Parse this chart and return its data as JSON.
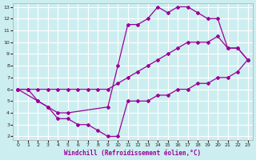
{
  "xlabel": "Windchill (Refroidissement éolien,°C)",
  "bg_color": "#cdeef0",
  "grid_color": "#ffffff",
  "line_color": "#990099",
  "xlim": [
    0,
    23
  ],
  "ylim": [
    2,
    13
  ],
  "xticks": [
    0,
    1,
    2,
    3,
    4,
    5,
    6,
    7,
    8,
    9,
    10,
    11,
    12,
    13,
    14,
    15,
    16,
    17,
    18,
    19,
    20,
    21,
    22,
    23
  ],
  "yticks": [
    2,
    3,
    4,
    5,
    6,
    7,
    8,
    9,
    10,
    11,
    12,
    13
  ],
  "line1_x": [
    0,
    1,
    2,
    3,
    4,
    5,
    6,
    7,
    8,
    9,
    10,
    11,
    12,
    13,
    14,
    15,
    16,
    17,
    18,
    19,
    20,
    21,
    22,
    23
  ],
  "line1_y": [
    6,
    6,
    6,
    6,
    6,
    6,
    6,
    6,
    6,
    6,
    6.5,
    7,
    7.5,
    8,
    8.5,
    9,
    9.5,
    10,
    10,
    10,
    10.5,
    9.5,
    9.5,
    8.5
  ],
  "line2_x": [
    0,
    1,
    2,
    3,
    4,
    5,
    6,
    7,
    8,
    9,
    10,
    11,
    12,
    13,
    14,
    15,
    16,
    17,
    18,
    19,
    20,
    21,
    22,
    23
  ],
  "line2_y": [
    6,
    6,
    5,
    4.5,
    3.5,
    3.5,
    3,
    3,
    2.5,
    2,
    2,
    5,
    5,
    5,
    5.5,
    5.5,
    6,
    6,
    6.5,
    6.5,
    7,
    7,
    7.5,
    8.5
  ],
  "line3_x": [
    0,
    2,
    3,
    4,
    5,
    9,
    10,
    11,
    12,
    13,
    14,
    15,
    16,
    17,
    18,
    19,
    20,
    21,
    22,
    23
  ],
  "line3_y": [
    6,
    5,
    4.5,
    4,
    4,
    4.5,
    8,
    11.5,
    11.5,
    12,
    13,
    12.5,
    13,
    13,
    12.5,
    12,
    12,
    9.5,
    9.5,
    8.5
  ]
}
